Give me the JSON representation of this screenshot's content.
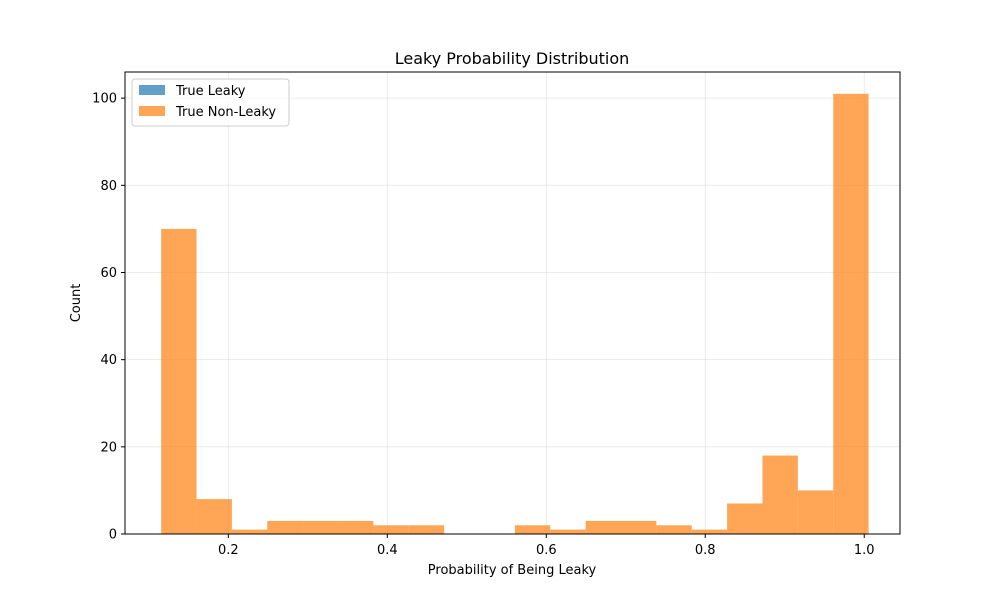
{
  "chart_data": {
    "type": "bar",
    "title": "Leaky Probability Distribution",
    "xlabel": "Probability of Being Leaky",
    "ylabel": "Count",
    "xlim": [
      0.07,
      1.045
    ],
    "ylim": [
      0,
      106
    ],
    "x_ticks": [
      0.2,
      0.4,
      0.6,
      0.8,
      1.0
    ],
    "x_tick_labels": [
      "0.2",
      "0.4",
      "0.6",
      "0.8",
      "1.0"
    ],
    "y_ticks": [
      0,
      20,
      40,
      60,
      80,
      100
    ],
    "y_tick_labels": [
      "0",
      "20",
      "40",
      "60",
      "80",
      "100"
    ],
    "grid": true,
    "legend_position": "top-left",
    "series": [
      {
        "name": "True Leaky",
        "color": "#1f77b4",
        "bins": []
      },
      {
        "name": "True Non-Leaky",
        "color": "#ff7f0e",
        "bins": [
          {
            "x0": 0.1155,
            "x1": 0.16,
            "count": 70
          },
          {
            "x0": 0.16,
            "x1": 0.2045,
            "count": 8
          },
          {
            "x0": 0.2045,
            "x1": 0.249,
            "count": 1
          },
          {
            "x0": 0.249,
            "x1": 0.2935,
            "count": 3
          },
          {
            "x0": 0.2935,
            "x1": 0.338,
            "count": 3
          },
          {
            "x0": 0.338,
            "x1": 0.3825,
            "count": 3
          },
          {
            "x0": 0.3825,
            "x1": 0.427,
            "count": 2
          },
          {
            "x0": 0.427,
            "x1": 0.4715,
            "count": 2
          },
          {
            "x0": 0.4715,
            "x1": 0.516,
            "count": 0
          },
          {
            "x0": 0.516,
            "x1": 0.5605,
            "count": 0
          },
          {
            "x0": 0.5605,
            "x1": 0.605,
            "count": 2
          },
          {
            "x0": 0.605,
            "x1": 0.6495,
            "count": 1
          },
          {
            "x0": 0.6495,
            "x1": 0.694,
            "count": 3
          },
          {
            "x0": 0.694,
            "x1": 0.7385,
            "count": 3
          },
          {
            "x0": 0.7385,
            "x1": 0.783,
            "count": 2
          },
          {
            "x0": 0.783,
            "x1": 0.8275,
            "count": 1
          },
          {
            "x0": 0.8275,
            "x1": 0.872,
            "count": 7
          },
          {
            "x0": 0.872,
            "x1": 0.9165,
            "count": 18
          },
          {
            "x0": 0.9165,
            "x1": 0.961,
            "count": 10
          },
          {
            "x0": 0.961,
            "x1": 1.0055,
            "count": 101
          }
        ]
      }
    ]
  }
}
